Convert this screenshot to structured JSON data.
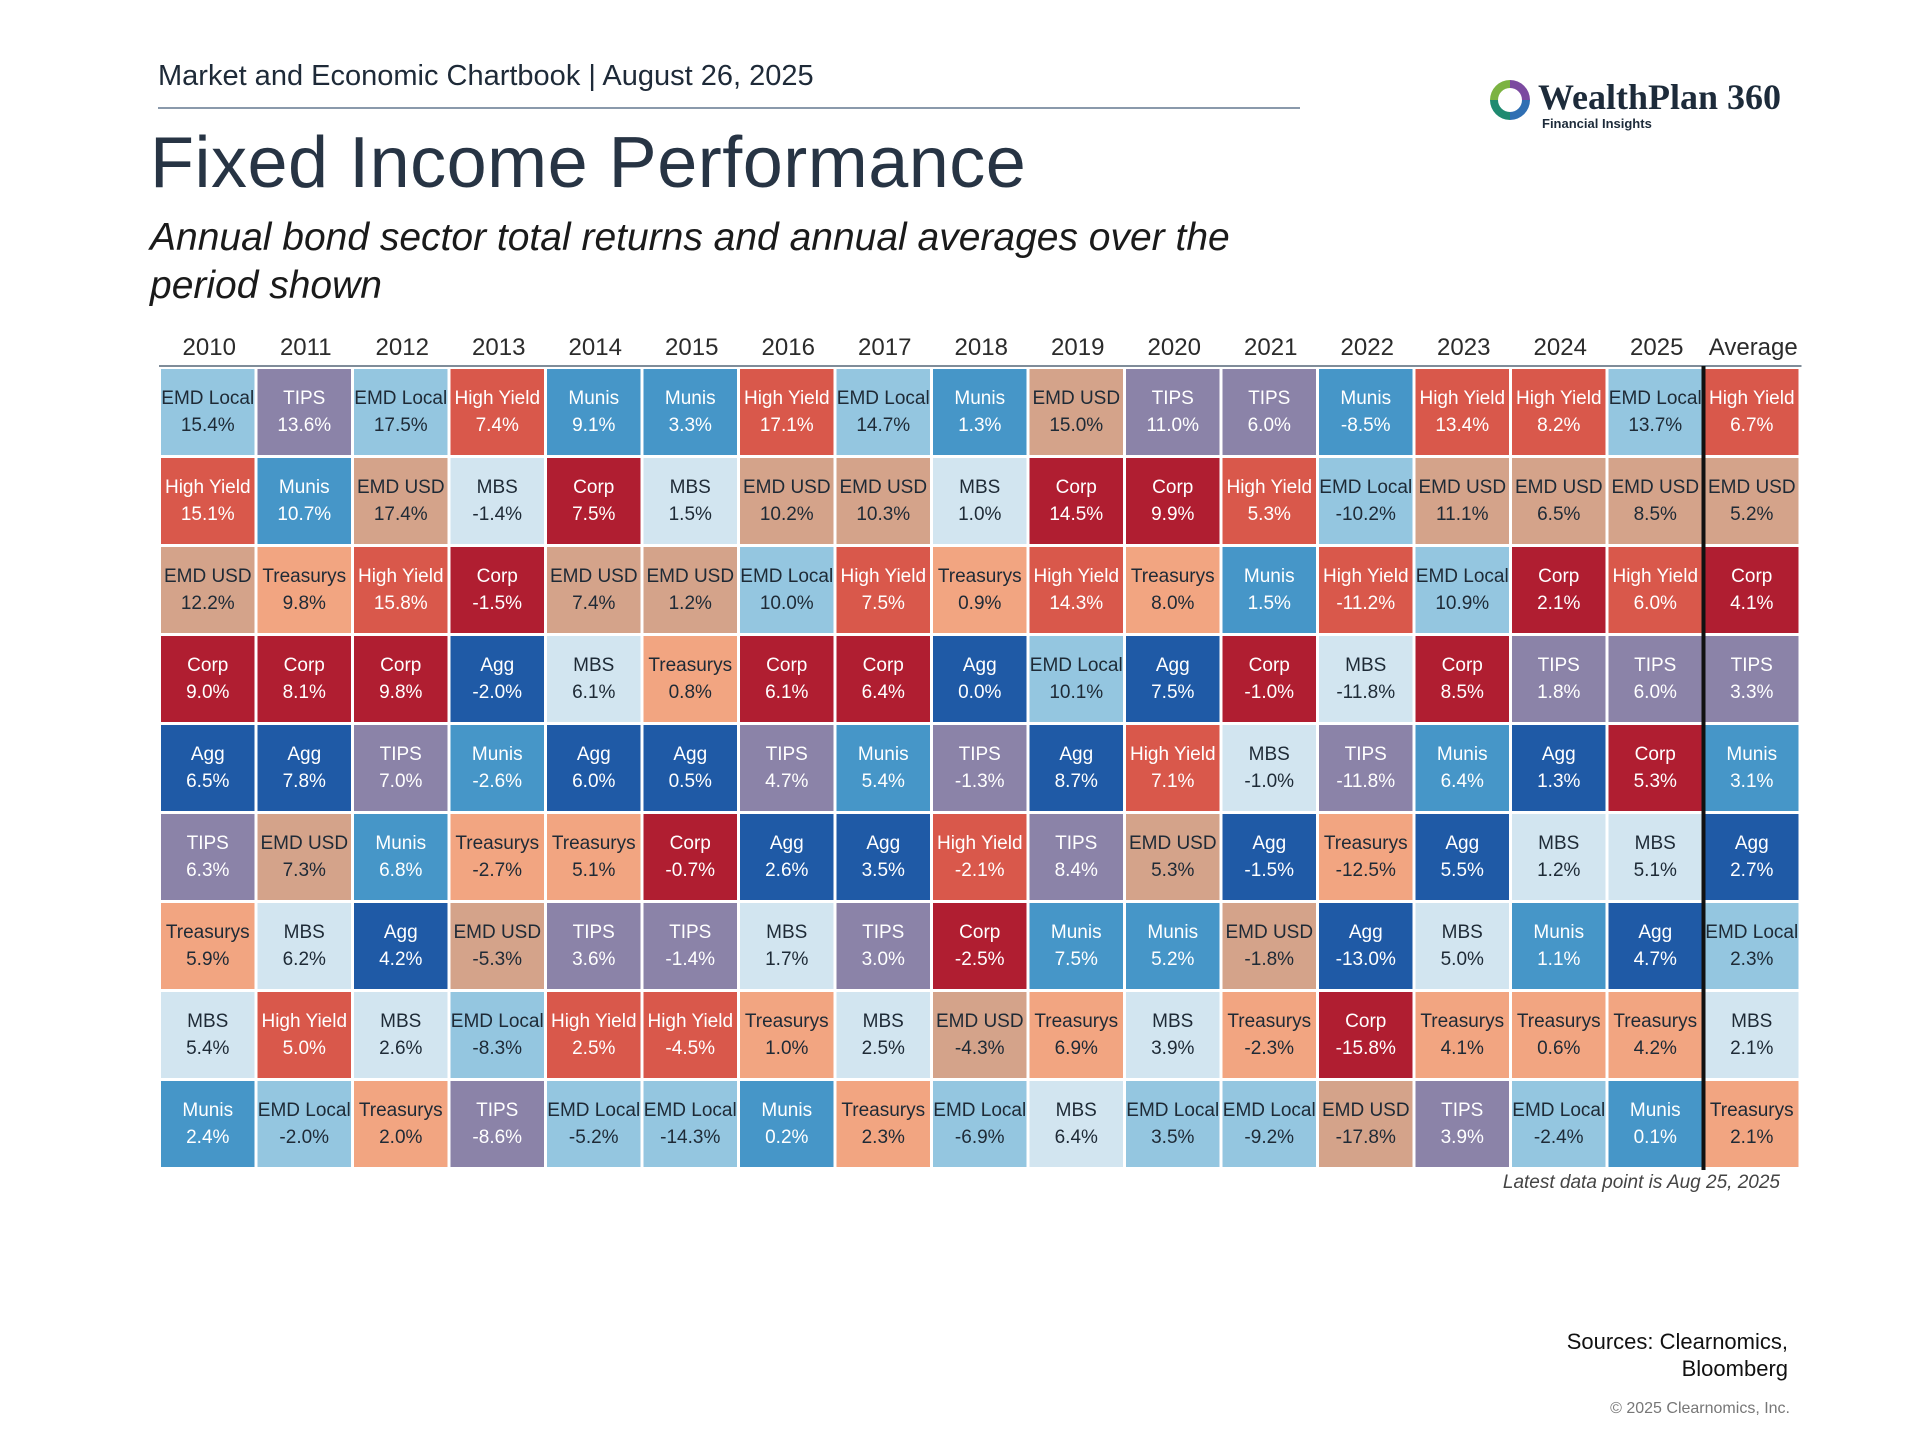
{
  "header": {
    "chartbook": "Market and Economic Chartbook | August 26, 2025",
    "logo_name": "WealthPlan 360",
    "logo_tag": "Financial Insights"
  },
  "colors": {
    "EMD Local": "#94c6e0",
    "TIPS": "#8b83a8",
    "High Yield": "#d9584b",
    "Munis": "#4696c8",
    "EMD USD": "#d4a38a",
    "MBS": "#d2e5f0",
    "Corp": "#b01e31",
    "Treasurys": "#f2a581",
    "Agg": "#1f5aa6"
  },
  "chart_data": {
    "type": "table",
    "title": "Fixed Income Performance",
    "subtitle": "Annual bond sector total returns and annual averages over the period shown",
    "columns": [
      "2010",
      "2011",
      "2012",
      "2013",
      "2014",
      "2015",
      "2016",
      "2017",
      "2018",
      "2019",
      "2020",
      "2021",
      "2022",
      "2023",
      "2024",
      "2025",
      "Average"
    ],
    "cells": [
      [
        [
          "EMD Local",
          "15.4%"
        ],
        [
          "High Yield",
          "15.1%"
        ],
        [
          "EMD USD",
          "12.2%"
        ],
        [
          "Corp",
          "9.0%"
        ],
        [
          "Agg",
          "6.5%"
        ],
        [
          "TIPS",
          "6.3%"
        ],
        [
          "Treasurys",
          "5.9%"
        ],
        [
          "MBS",
          "5.4%"
        ],
        [
          "Munis",
          "2.4%"
        ]
      ],
      [
        [
          "TIPS",
          "13.6%"
        ],
        [
          "Munis",
          "10.7%"
        ],
        [
          "Treasurys",
          "9.8%"
        ],
        [
          "Corp",
          "8.1%"
        ],
        [
          "Agg",
          "7.8%"
        ],
        [
          "EMD USD",
          "7.3%"
        ],
        [
          "MBS",
          "6.2%"
        ],
        [
          "High Yield",
          "5.0%"
        ],
        [
          "EMD Local",
          "-2.0%"
        ]
      ],
      [
        [
          "EMD Local",
          "17.5%"
        ],
        [
          "EMD USD",
          "17.4%"
        ],
        [
          "High Yield",
          "15.8%"
        ],
        [
          "Corp",
          "9.8%"
        ],
        [
          "TIPS",
          "7.0%"
        ],
        [
          "Munis",
          "6.8%"
        ],
        [
          "Agg",
          "4.2%"
        ],
        [
          "MBS",
          "2.6%"
        ],
        [
          "Treasurys",
          "2.0%"
        ]
      ],
      [
        [
          "High Yield",
          "7.4%"
        ],
        [
          "MBS",
          "-1.4%"
        ],
        [
          "Corp",
          "-1.5%"
        ],
        [
          "Agg",
          "-2.0%"
        ],
        [
          "Munis",
          "-2.6%"
        ],
        [
          "Treasurys",
          "-2.7%"
        ],
        [
          "EMD USD",
          "-5.3%"
        ],
        [
          "EMD Local",
          "-8.3%"
        ],
        [
          "TIPS",
          "-8.6%"
        ]
      ],
      [
        [
          "Munis",
          "9.1%"
        ],
        [
          "Corp",
          "7.5%"
        ],
        [
          "EMD USD",
          "7.4%"
        ],
        [
          "MBS",
          "6.1%"
        ],
        [
          "Agg",
          "6.0%"
        ],
        [
          "Treasurys",
          "5.1%"
        ],
        [
          "TIPS",
          "3.6%"
        ],
        [
          "High Yield",
          "2.5%"
        ],
        [
          "EMD Local",
          "-5.2%"
        ]
      ],
      [
        [
          "Munis",
          "3.3%"
        ],
        [
          "MBS",
          "1.5%"
        ],
        [
          "EMD USD",
          "1.2%"
        ],
        [
          "Treasurys",
          "0.8%"
        ],
        [
          "Agg",
          "0.5%"
        ],
        [
          "Corp",
          "-0.7%"
        ],
        [
          "TIPS",
          "-1.4%"
        ],
        [
          "High Yield",
          "-4.5%"
        ],
        [
          "EMD Local",
          "-14.3%"
        ]
      ],
      [
        [
          "High Yield",
          "17.1%"
        ],
        [
          "EMD USD",
          "10.2%"
        ],
        [
          "EMD Local",
          "10.0%"
        ],
        [
          "Corp",
          "6.1%"
        ],
        [
          "TIPS",
          "4.7%"
        ],
        [
          "Agg",
          "2.6%"
        ],
        [
          "MBS",
          "1.7%"
        ],
        [
          "Treasurys",
          "1.0%"
        ],
        [
          "Munis",
          "0.2%"
        ]
      ],
      [
        [
          "EMD Local",
          "14.7%"
        ],
        [
          "EMD USD",
          "10.3%"
        ],
        [
          "High Yield",
          "7.5%"
        ],
        [
          "Corp",
          "6.4%"
        ],
        [
          "Munis",
          "5.4%"
        ],
        [
          "Agg",
          "3.5%"
        ],
        [
          "TIPS",
          "3.0%"
        ],
        [
          "MBS",
          "2.5%"
        ],
        [
          "Treasurys",
          "2.3%"
        ]
      ],
      [
        [
          "Munis",
          "1.3%"
        ],
        [
          "MBS",
          "1.0%"
        ],
        [
          "Treasurys",
          "0.9%"
        ],
        [
          "Agg",
          "0.0%"
        ],
        [
          "TIPS",
          "-1.3%"
        ],
        [
          "High Yield",
          "-2.1%"
        ],
        [
          "Corp",
          "-2.5%"
        ],
        [
          "EMD USD",
          "-4.3%"
        ],
        [
          "EMD Local",
          "-6.9%"
        ]
      ],
      [
        [
          "EMD USD",
          "15.0%"
        ],
        [
          "Corp",
          "14.5%"
        ],
        [
          "High Yield",
          "14.3%"
        ],
        [
          "EMD Local",
          "10.1%"
        ],
        [
          "Agg",
          "8.7%"
        ],
        [
          "TIPS",
          "8.4%"
        ],
        [
          "Munis",
          "7.5%"
        ],
        [
          "Treasurys",
          "6.9%"
        ],
        [
          "MBS",
          "6.4%"
        ]
      ],
      [
        [
          "TIPS",
          "11.0%"
        ],
        [
          "Corp",
          "9.9%"
        ],
        [
          "Treasurys",
          "8.0%"
        ],
        [
          "Agg",
          "7.5%"
        ],
        [
          "High Yield",
          "7.1%"
        ],
        [
          "EMD USD",
          "5.3%"
        ],
        [
          "Munis",
          "5.2%"
        ],
        [
          "MBS",
          "3.9%"
        ],
        [
          "EMD Local",
          "3.5%"
        ]
      ],
      [
        [
          "TIPS",
          "6.0%"
        ],
        [
          "High Yield",
          "5.3%"
        ],
        [
          "Munis",
          "1.5%"
        ],
        [
          "Corp",
          "-1.0%"
        ],
        [
          "MBS",
          "-1.0%"
        ],
        [
          "Agg",
          "-1.5%"
        ],
        [
          "EMD USD",
          "-1.8%"
        ],
        [
          "Treasurys",
          "-2.3%"
        ],
        [
          "EMD Local",
          "-9.2%"
        ]
      ],
      [
        [
          "Munis",
          "-8.5%"
        ],
        [
          "EMD Local",
          "-10.2%"
        ],
        [
          "High Yield",
          "-11.2%"
        ],
        [
          "MBS",
          "-11.8%"
        ],
        [
          "TIPS",
          "-11.8%"
        ],
        [
          "Treasurys",
          "-12.5%"
        ],
        [
          "Agg",
          "-13.0%"
        ],
        [
          "Corp",
          "-15.8%"
        ],
        [
          "EMD USD",
          "-17.8%"
        ]
      ],
      [
        [
          "High Yield",
          "13.4%"
        ],
        [
          "EMD USD",
          "11.1%"
        ],
        [
          "EMD Local",
          "10.9%"
        ],
        [
          "Corp",
          "8.5%"
        ],
        [
          "Munis",
          "6.4%"
        ],
        [
          "Agg",
          "5.5%"
        ],
        [
          "MBS",
          "5.0%"
        ],
        [
          "Treasurys",
          "4.1%"
        ],
        [
          "TIPS",
          "3.9%"
        ]
      ],
      [
        [
          "High Yield",
          "8.2%"
        ],
        [
          "EMD USD",
          "6.5%"
        ],
        [
          "Corp",
          "2.1%"
        ],
        [
          "TIPS",
          "1.8%"
        ],
        [
          "Agg",
          "1.3%"
        ],
        [
          "MBS",
          "1.2%"
        ],
        [
          "Munis",
          "1.1%"
        ],
        [
          "Treasurys",
          "0.6%"
        ],
        [
          "EMD Local",
          "-2.4%"
        ]
      ],
      [
        [
          "EMD Local",
          "13.7%"
        ],
        [
          "EMD USD",
          "8.5%"
        ],
        [
          "High Yield",
          "6.0%"
        ],
        [
          "TIPS",
          "6.0%"
        ],
        [
          "Corp",
          "5.3%"
        ],
        [
          "MBS",
          "5.1%"
        ],
        [
          "Agg",
          "4.7%"
        ],
        [
          "Treasurys",
          "4.2%"
        ],
        [
          "Munis",
          "0.1%"
        ]
      ],
      [
        [
          "High Yield",
          "6.7%"
        ],
        [
          "EMD USD",
          "5.2%"
        ],
        [
          "Corp",
          "4.1%"
        ],
        [
          "TIPS",
          "3.3%"
        ],
        [
          "Munis",
          "3.1%"
        ],
        [
          "Agg",
          "2.7%"
        ],
        [
          "EMD Local",
          "2.3%"
        ],
        [
          "MBS",
          "2.1%"
        ],
        [
          "Treasurys",
          "2.1%"
        ]
      ]
    ]
  },
  "footer": {
    "note": "Latest data point is Aug 25, 2025",
    "sources_line1": "Sources: Clearnomics,",
    "sources_line2": "Bloomberg",
    "copyright": "© 2025 Clearnomics, Inc."
  }
}
